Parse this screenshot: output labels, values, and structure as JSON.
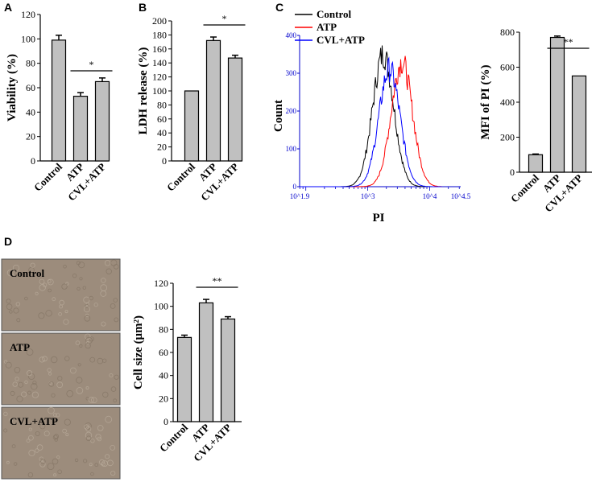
{
  "chart_data": [
    {
      "id": "A",
      "panel_label": "A",
      "type": "bar",
      "categories": [
        "Control",
        "ATP",
        "CVL+ATP"
      ],
      "values": [
        99,
        53,
        65
      ],
      "errors": [
        4,
        3,
        3
      ],
      "ylabel": "Viability (%)",
      "ylim": [
        0,
        120
      ],
      "yticks": [
        "0",
        "20",
        "40",
        "60",
        "80",
        "100",
        "120"
      ],
      "significance": [
        {
          "from": 1,
          "to": 2,
          "label": "*"
        }
      ]
    },
    {
      "id": "B",
      "panel_label": "B",
      "type": "bar",
      "categories": [
        "Control",
        "ATP",
        "CVL+ATP"
      ],
      "values": [
        100,
        172,
        147
      ],
      "errors": [
        0,
        5,
        4
      ],
      "ylabel": "LDH release (%)",
      "ylim": [
        0,
        200
      ],
      "yticks": [
        "0",
        "20",
        "40",
        "60",
        "80",
        "100",
        "120",
        "140",
        "160",
        "180",
        "200"
      ],
      "significance": [
        {
          "from": 1,
          "to": 2,
          "label": "*"
        }
      ]
    },
    {
      "id": "C-flow",
      "panel_label": "C",
      "type": "line",
      "xlabel": "PI",
      "ylabel": "Count",
      "xscale": "log",
      "xlim_log10": [
        1.9,
        4.5
      ],
      "ylim": [
        0,
        400
      ],
      "yticks": [
        "0",
        "100",
        "200",
        "300",
        "400"
      ],
      "xtick_labels": [
        "10^1.9",
        "10^3",
        "10^4",
        "10^4.5"
      ],
      "legend": [
        "Control",
        "ATP",
        "CVL+ATP"
      ],
      "series": [
        {
          "name": "Control",
          "color": "#000000",
          "peak_log10": 3.25,
          "peak_count": 350
        },
        {
          "name": "ATP",
          "color": "#ff0000",
          "peak_log10": 3.55,
          "peak_count": 330
        },
        {
          "name": "CVL+ATP",
          "color": "#0000ff",
          "peak_log10": 3.35,
          "peak_count": 310
        }
      ]
    },
    {
      "id": "C-mfi",
      "type": "bar",
      "categories": [
        "Control",
        "ATP",
        "CVL+ATP"
      ],
      "values": [
        100,
        770,
        550
      ],
      "errors": [
        4,
        8,
        0
      ],
      "ylabel": "MFI of PI (%)",
      "ylim": [
        0,
        800
      ],
      "yticks": [
        "0",
        "200",
        "400",
        "600",
        "800"
      ],
      "significance": [
        {
          "from": 1,
          "to": 2,
          "label": "**"
        }
      ]
    },
    {
      "id": "D",
      "panel_label": "D",
      "type": "bar",
      "categories": [
        "Control",
        "ATP",
        "CVL+ATP"
      ],
      "values": [
        73,
        103,
        89
      ],
      "errors": [
        2,
        3,
        2
      ],
      "ylabel": "Cell size (μm²)",
      "ylim": [
        0,
        120
      ],
      "yticks": [
        "0",
        "20",
        "40",
        "60",
        "80",
        "100",
        "120"
      ],
      "significance": [
        {
          "from": 1,
          "to": 2,
          "label": "**"
        }
      ]
    }
  ],
  "micrographs": {
    "labels": [
      "Control",
      "ATP",
      "CVL+ATP"
    ],
    "background_color": "#9c8c7c"
  },
  "colors": {
    "bar_fill": "#c0c0c0",
    "axis": "#000000",
    "flow_axis": "#0000cc"
  }
}
